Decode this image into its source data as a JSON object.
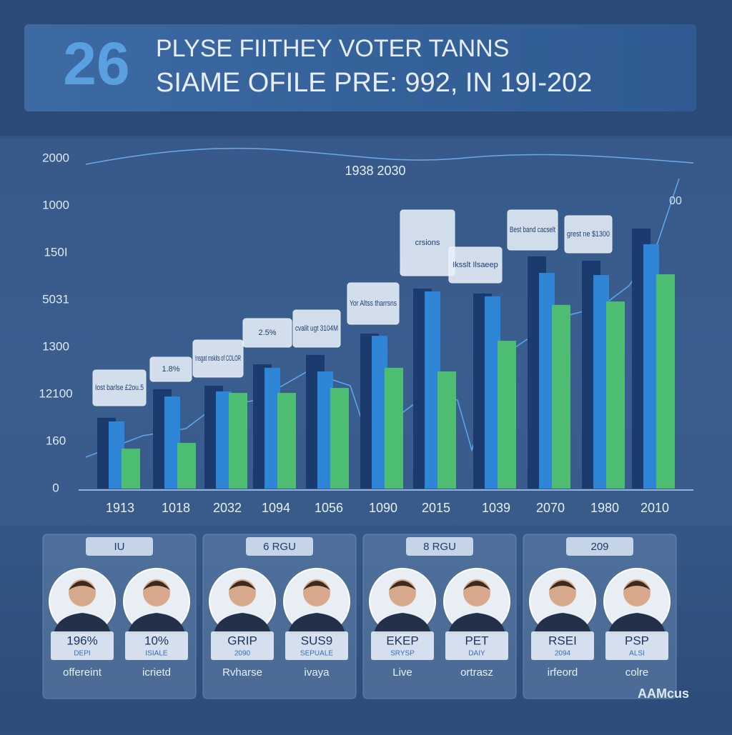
{
  "header": {
    "number": "26",
    "line1": "PLYSE FIITHEY VOTER TANNS",
    "line2": "SIAME OFILE PRE: 992, IN 19I-202"
  },
  "chart_data": {
    "type": "bar",
    "title": "1938 2030",
    "corner_label": "00",
    "categories": [
      "1913",
      "1018",
      "2032",
      "1094",
      "1056",
      "1090",
      "2015",
      "1039",
      "2070",
      "1980",
      "2010"
    ],
    "series": [
      {
        "color": "#1b3a6e",
        "values": [
          429,
          602,
          623,
          753,
          810,
          939,
          1212,
          1182,
          1407,
          1381,
          1576
        ]
      },
      {
        "color": "#2f86d6",
        "values": [
          407,
          558,
          589,
          732,
          710,
          926,
          1195,
          1165,
          1307,
          1294,
          1481
        ]
      },
      {
        "color": "#4dbd72",
        "values": [
          242,
          277,
          580,
          580,
          610,
          732,
          710,
          896,
          1113,
          1134,
          1299
        ]
      }
    ],
    "ylim": [
      0,
      2000
    ],
    "y_axis_labels": [
      "2000",
      "1000",
      "150I",
      "5031",
      "1300",
      "12100",
      "160",
      "0"
    ],
    "annotations": [
      "Iost barlse £2ou.5",
      "1.8%",
      "Insgat mskits of COLOR",
      "2.5%",
      "cvalit ugt 3104M",
      "Yor Altss tharrsns",
      "crsions",
      "Iksslt Ilsaeep",
      "Best band cacselt",
      "grest ne $1300"
    ]
  },
  "cards": [
    {
      "tag": "IU",
      "people": [
        {
          "stat": "196%",
          "sub": "DEPI",
          "name": "offereint"
        },
        {
          "stat": "10%",
          "sub": "ISIALE",
          "name": "icrietd"
        }
      ]
    },
    {
      "tag": "6 RGU",
      "people": [
        {
          "stat": "GRIP",
          "sub": "2090",
          "name": "Rvharse"
        },
        {
          "stat": "SUS9",
          "sub": "SEPUALE",
          "name": "ivaya"
        }
      ]
    },
    {
      "tag": "8 RGU",
      "people": [
        {
          "stat": "EKEP",
          "sub": "SRYSP",
          "name": "Live"
        },
        {
          "stat": "PET",
          "sub": "DAIY",
          "name": "ortrasz"
        }
      ]
    },
    {
      "tag": "209",
      "people": [
        {
          "stat": "RSEI",
          "sub": "2094",
          "name": "irfeord"
        },
        {
          "stat": "PSP",
          "sub": "ALSI",
          "name": "colre"
        }
      ]
    }
  ],
  "footer": "AAMcus"
}
